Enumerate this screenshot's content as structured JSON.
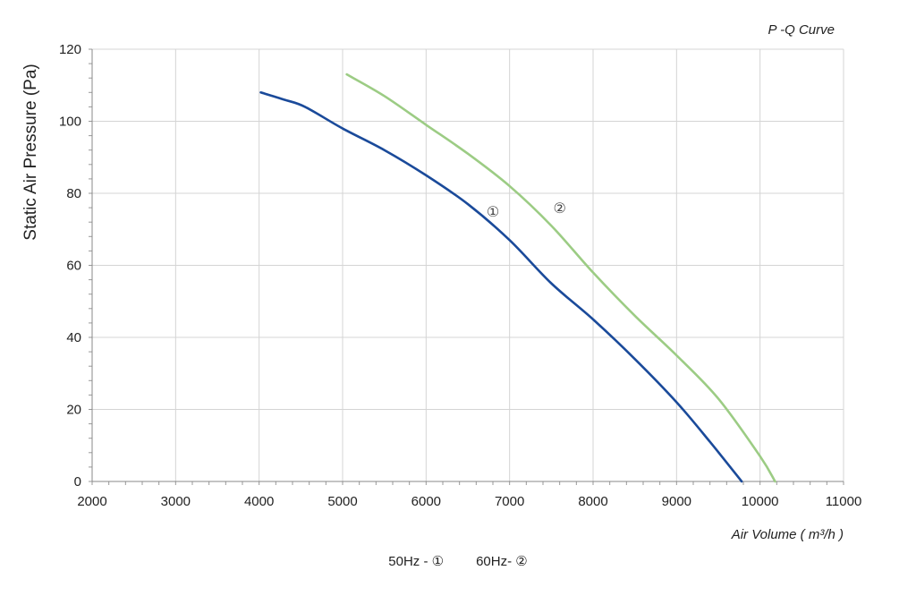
{
  "chart_data": {
    "type": "line",
    "title": "P -Q Curve",
    "xlabel": "Air Volume ( m³/h )",
    "ylabel": "Static Air Pressure  (Pa)",
    "xlim": [
      2000,
      11000
    ],
    "ylim": [
      0,
      120
    ],
    "xticks": [
      "2000",
      "3000",
      "4000",
      "5000",
      "6000",
      "7000",
      "8000",
      "9000",
      "10000",
      "11000"
    ],
    "yticks": [
      "0",
      "20",
      "40",
      "60",
      "80",
      "100",
      "120"
    ],
    "grid": true,
    "series": [
      {
        "name": "①",
        "color": "#1a4a9a",
        "x": [
          4020,
          4300,
          4550,
          5000,
          5500,
          6000,
          6500,
          7000,
          7500,
          8000,
          8500,
          9000,
          9400,
          9780
        ],
        "y": [
          108,
          106,
          104,
          98,
          92,
          85,
          77,
          67,
          55,
          45,
          34,
          22,
          11,
          0
        ]
      },
      {
        "name": "②",
        "color": "#9ccc84",
        "x": [
          5050,
          5500,
          6000,
          6500,
          7000,
          7500,
          8000,
          8500,
          9000,
          9500,
          10000,
          10180
        ],
        "y": [
          113,
          107,
          99,
          91,
          82,
          71,
          58,
          46,
          35,
          23,
          7,
          0
        ]
      }
    ],
    "curve_labels": [
      {
        "text": "①",
        "x": 6800,
        "y": 75
      },
      {
        "text": "②",
        "x": 7600,
        "y": 76
      }
    ]
  },
  "legend": {
    "item1": "50Hz -  ①",
    "item2": "60Hz-  ②"
  }
}
